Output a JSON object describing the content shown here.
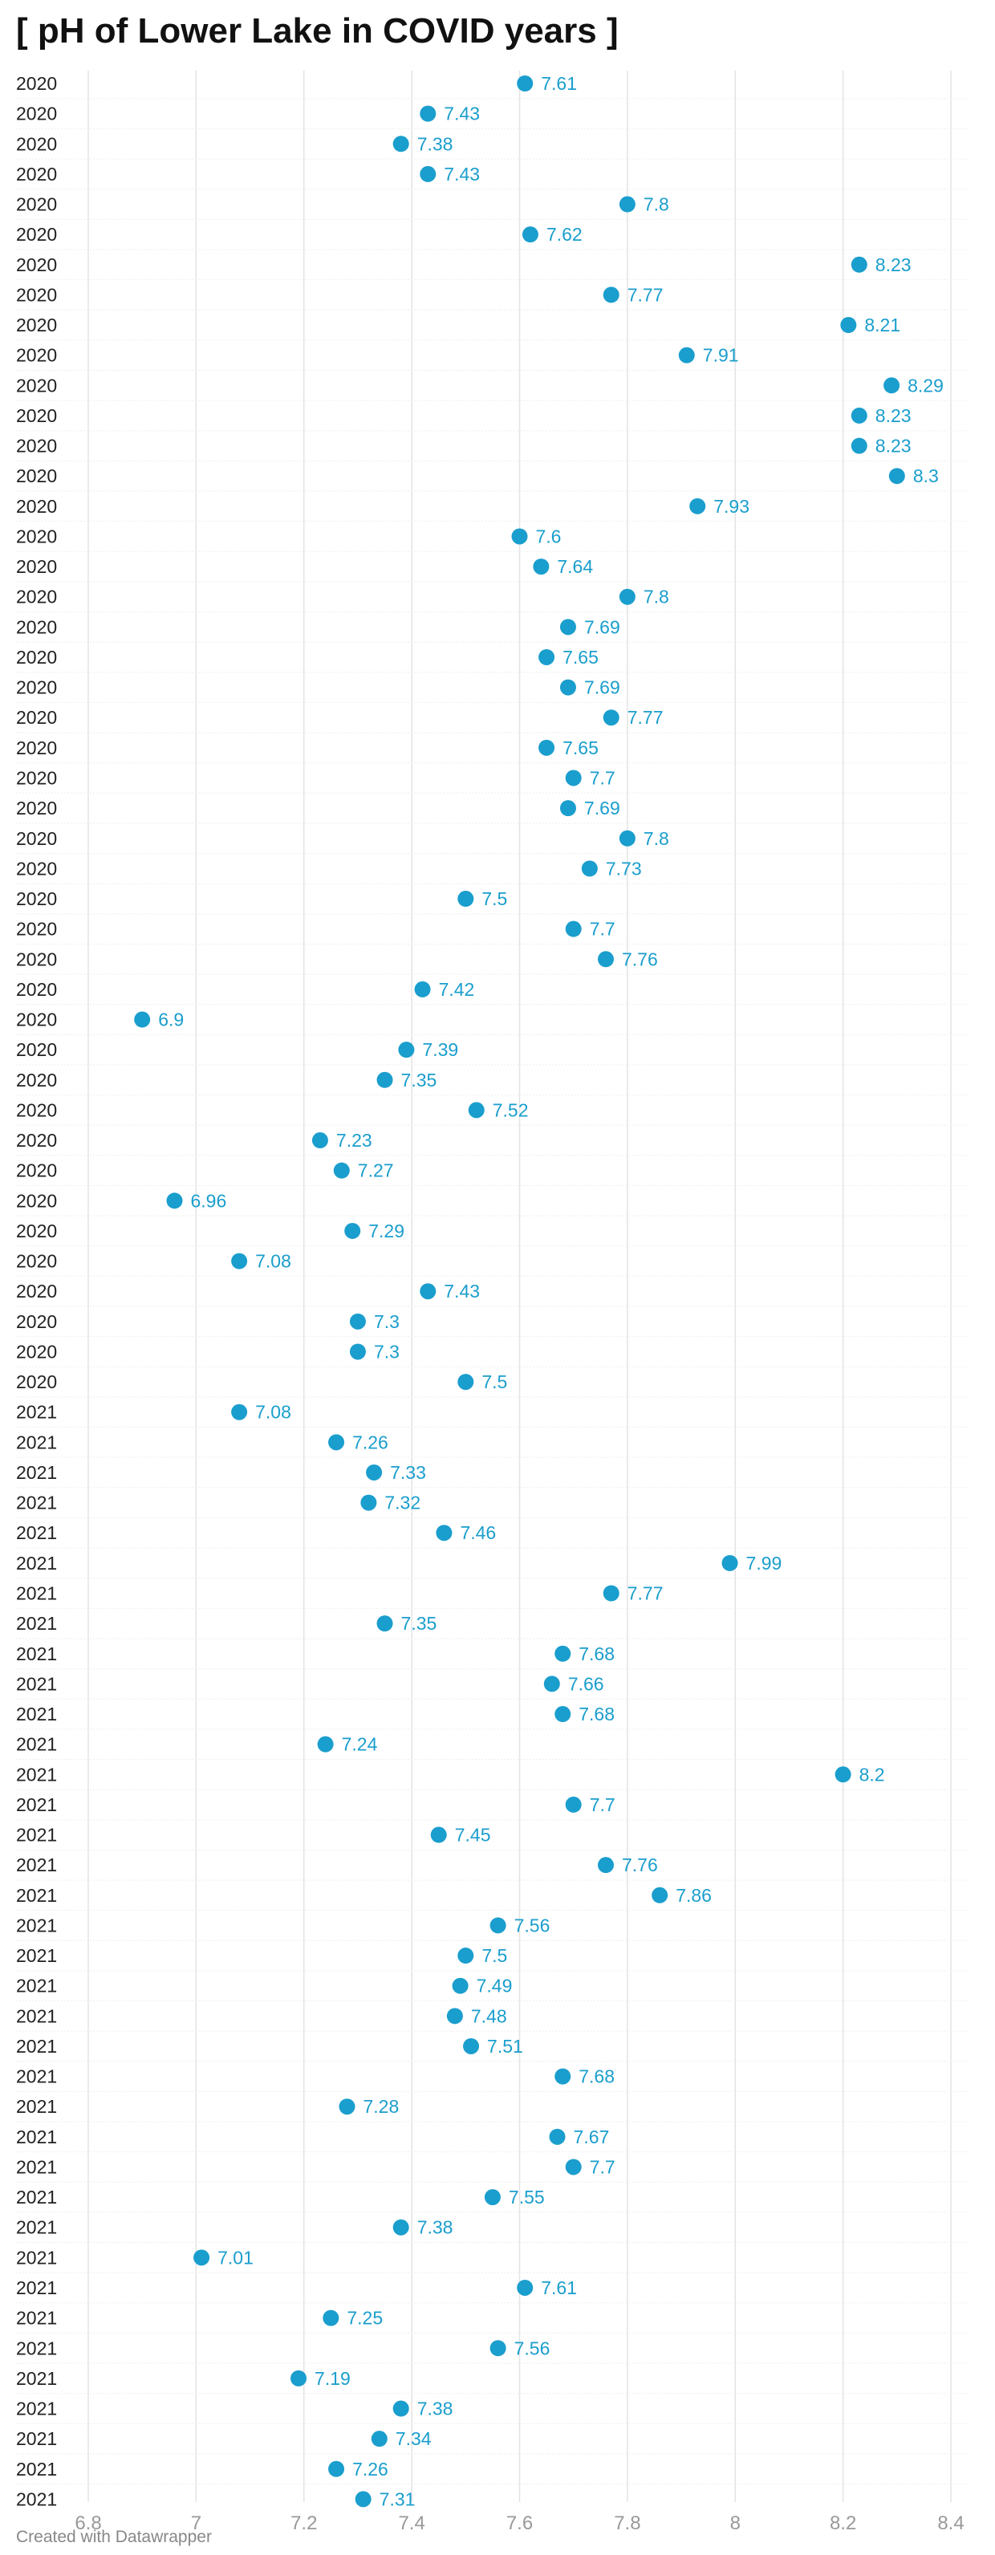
{
  "chart_data": {
    "type": "scatter",
    "title": "[ pH of Lower Lake in COVID years ]",
    "credit": "Created with Datawrapper",
    "xlim": [
      6.8,
      8.4
    ],
    "x_ticks": [
      "6.8",
      "7",
      "7.2",
      "7.4",
      "7.6",
      "7.8",
      "8",
      "8.2",
      "8.4"
    ],
    "x_tick_values": [
      6.8,
      7.0,
      7.2,
      7.4,
      7.6,
      7.8,
      8.0,
      8.2,
      8.4
    ],
    "grid": "vertical",
    "dot_color": "#1a9ecd",
    "rows": [
      {
        "label": "2020",
        "value": 7.61
      },
      {
        "label": "2020",
        "value": 7.43
      },
      {
        "label": "2020",
        "value": 7.38
      },
      {
        "label": "2020",
        "value": 7.43
      },
      {
        "label": "2020",
        "value": 7.8
      },
      {
        "label": "2020",
        "value": 7.62
      },
      {
        "label": "2020",
        "value": 8.23
      },
      {
        "label": "2020",
        "value": 7.77
      },
      {
        "label": "2020",
        "value": 8.21
      },
      {
        "label": "2020",
        "value": 7.91
      },
      {
        "label": "2020",
        "value": 8.29
      },
      {
        "label": "2020",
        "value": 8.23
      },
      {
        "label": "2020",
        "value": 8.23
      },
      {
        "label": "2020",
        "value": 8.3
      },
      {
        "label": "2020",
        "value": 7.93
      },
      {
        "label": "2020",
        "value": 7.6
      },
      {
        "label": "2020",
        "value": 7.64
      },
      {
        "label": "2020",
        "value": 7.8
      },
      {
        "label": "2020",
        "value": 7.69
      },
      {
        "label": "2020",
        "value": 7.65
      },
      {
        "label": "2020",
        "value": 7.69
      },
      {
        "label": "2020",
        "value": 7.77
      },
      {
        "label": "2020",
        "value": 7.65
      },
      {
        "label": "2020",
        "value": 7.7
      },
      {
        "label": "2020",
        "value": 7.69
      },
      {
        "label": "2020",
        "value": 7.8
      },
      {
        "label": "2020",
        "value": 7.73
      },
      {
        "label": "2020",
        "value": 7.5
      },
      {
        "label": "2020",
        "value": 7.7
      },
      {
        "label": "2020",
        "value": 7.76
      },
      {
        "label": "2020",
        "value": 7.42
      },
      {
        "label": "2020",
        "value": 6.9
      },
      {
        "label": "2020",
        "value": 7.39
      },
      {
        "label": "2020",
        "value": 7.35
      },
      {
        "label": "2020",
        "value": 7.52
      },
      {
        "label": "2020",
        "value": 7.23
      },
      {
        "label": "2020",
        "value": 7.27
      },
      {
        "label": "2020",
        "value": 6.96
      },
      {
        "label": "2020",
        "value": 7.29
      },
      {
        "label": "2020",
        "value": 7.08
      },
      {
        "label": "2020",
        "value": 7.43
      },
      {
        "label": "2020",
        "value": 7.3
      },
      {
        "label": "2020",
        "value": 7.3
      },
      {
        "label": "2020",
        "value": 7.5
      },
      {
        "label": "2021",
        "value": 7.08
      },
      {
        "label": "2021",
        "value": 7.26
      },
      {
        "label": "2021",
        "value": 7.33
      },
      {
        "label": "2021",
        "value": 7.32
      },
      {
        "label": "2021",
        "value": 7.46
      },
      {
        "label": "2021",
        "value": 7.99
      },
      {
        "label": "2021",
        "value": 7.77
      },
      {
        "label": "2021",
        "value": 7.35
      },
      {
        "label": "2021",
        "value": 7.68
      },
      {
        "label": "2021",
        "value": 7.66
      },
      {
        "label": "2021",
        "value": 7.68
      },
      {
        "label": "2021",
        "value": 7.24
      },
      {
        "label": "2021",
        "value": 8.2
      },
      {
        "label": "2021",
        "value": 7.7
      },
      {
        "label": "2021",
        "value": 7.45
      },
      {
        "label": "2021",
        "value": 7.76
      },
      {
        "label": "2021",
        "value": 7.86
      },
      {
        "label": "2021",
        "value": 7.56
      },
      {
        "label": "2021",
        "value": 7.5
      },
      {
        "label": "2021",
        "value": 7.49
      },
      {
        "label": "2021",
        "value": 7.48
      },
      {
        "label": "2021",
        "value": 7.51
      },
      {
        "label": "2021",
        "value": 7.68
      },
      {
        "label": "2021",
        "value": 7.28
      },
      {
        "label": "2021",
        "value": 7.67
      },
      {
        "label": "2021",
        "value": 7.7
      },
      {
        "label": "2021",
        "value": 7.55
      },
      {
        "label": "2021",
        "value": 7.38
      },
      {
        "label": "2021",
        "value": 7.01
      },
      {
        "label": "2021",
        "value": 7.61
      },
      {
        "label": "2021",
        "value": 7.25
      },
      {
        "label": "2021",
        "value": 7.56
      },
      {
        "label": "2021",
        "value": 7.19
      },
      {
        "label": "2021",
        "value": 7.38
      },
      {
        "label": "2021",
        "value": 7.34
      },
      {
        "label": "2021",
        "value": 7.26
      },
      {
        "label": "2021",
        "value": 7.31
      }
    ]
  }
}
